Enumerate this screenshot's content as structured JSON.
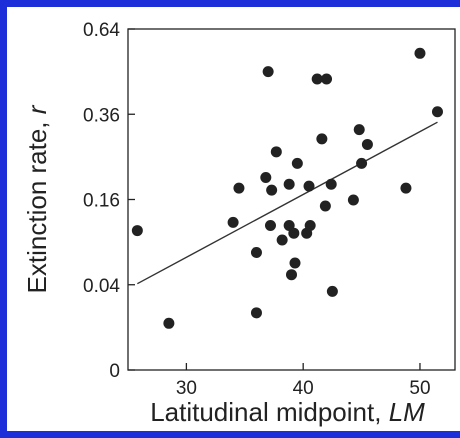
{
  "frame": {
    "border_color": "#1c2fd8"
  },
  "chart_data": {
    "type": "scatter",
    "xlabel": "Latitudinal midpoint,",
    "xlabel_italic": "LM",
    "ylabel": "Extinction rate,",
    "ylabel_italic": "r",
    "x_ticks": [
      30,
      40,
      50
    ],
    "y_ticks": [
      "0",
      "0.04",
      "0.16",
      "0.36",
      "0.64"
    ],
    "y_scale": "sqrt",
    "xlim": [
      25,
      53
    ],
    "ylim": [
      0,
      0.64
    ],
    "grid": false,
    "points": [
      {
        "x": 25.8,
        "y": 0.107
      },
      {
        "x": 28.5,
        "y": 0.012
      },
      {
        "x": 34.0,
        "y": 0.12
      },
      {
        "x": 34.5,
        "y": 0.182
      },
      {
        "x": 36.0,
        "y": 0.076
      },
      {
        "x": 36.0,
        "y": 0.018
      },
      {
        "x": 36.8,
        "y": 0.204
      },
      {
        "x": 37.0,
        "y": 0.49
      },
      {
        "x": 37.2,
        "y": 0.115
      },
      {
        "x": 37.3,
        "y": 0.178
      },
      {
        "x": 37.7,
        "y": 0.262
      },
      {
        "x": 38.2,
        "y": 0.093
      },
      {
        "x": 38.8,
        "y": 0.115
      },
      {
        "x": 38.8,
        "y": 0.19
      },
      {
        "x": 39.0,
        "y": 0.05
      },
      {
        "x": 39.2,
        "y": 0.103
      },
      {
        "x": 39.3,
        "y": 0.063
      },
      {
        "x": 39.5,
        "y": 0.235
      },
      {
        "x": 40.3,
        "y": 0.103
      },
      {
        "x": 40.5,
        "y": 0.186
      },
      {
        "x": 40.6,
        "y": 0.115
      },
      {
        "x": 41.2,
        "y": 0.466
      },
      {
        "x": 41.6,
        "y": 0.294
      },
      {
        "x": 41.9,
        "y": 0.148
      },
      {
        "x": 42.0,
        "y": 0.466
      },
      {
        "x": 42.4,
        "y": 0.19
      },
      {
        "x": 42.5,
        "y": 0.034
      },
      {
        "x": 44.3,
        "y": 0.159
      },
      {
        "x": 44.8,
        "y": 0.318
      },
      {
        "x": 45.0,
        "y": 0.235
      },
      {
        "x": 45.5,
        "y": 0.28
      },
      {
        "x": 48.8,
        "y": 0.182
      },
      {
        "x": 50.0,
        "y": 0.552
      },
      {
        "x": 51.5,
        "y": 0.367
      }
    ],
    "trend_line": {
      "x": [
        25.8,
        51.5
      ],
      "y": [
        0.041,
        0.338
      ]
    },
    "marker_color": "#222222",
    "line_color": "#333333"
  }
}
